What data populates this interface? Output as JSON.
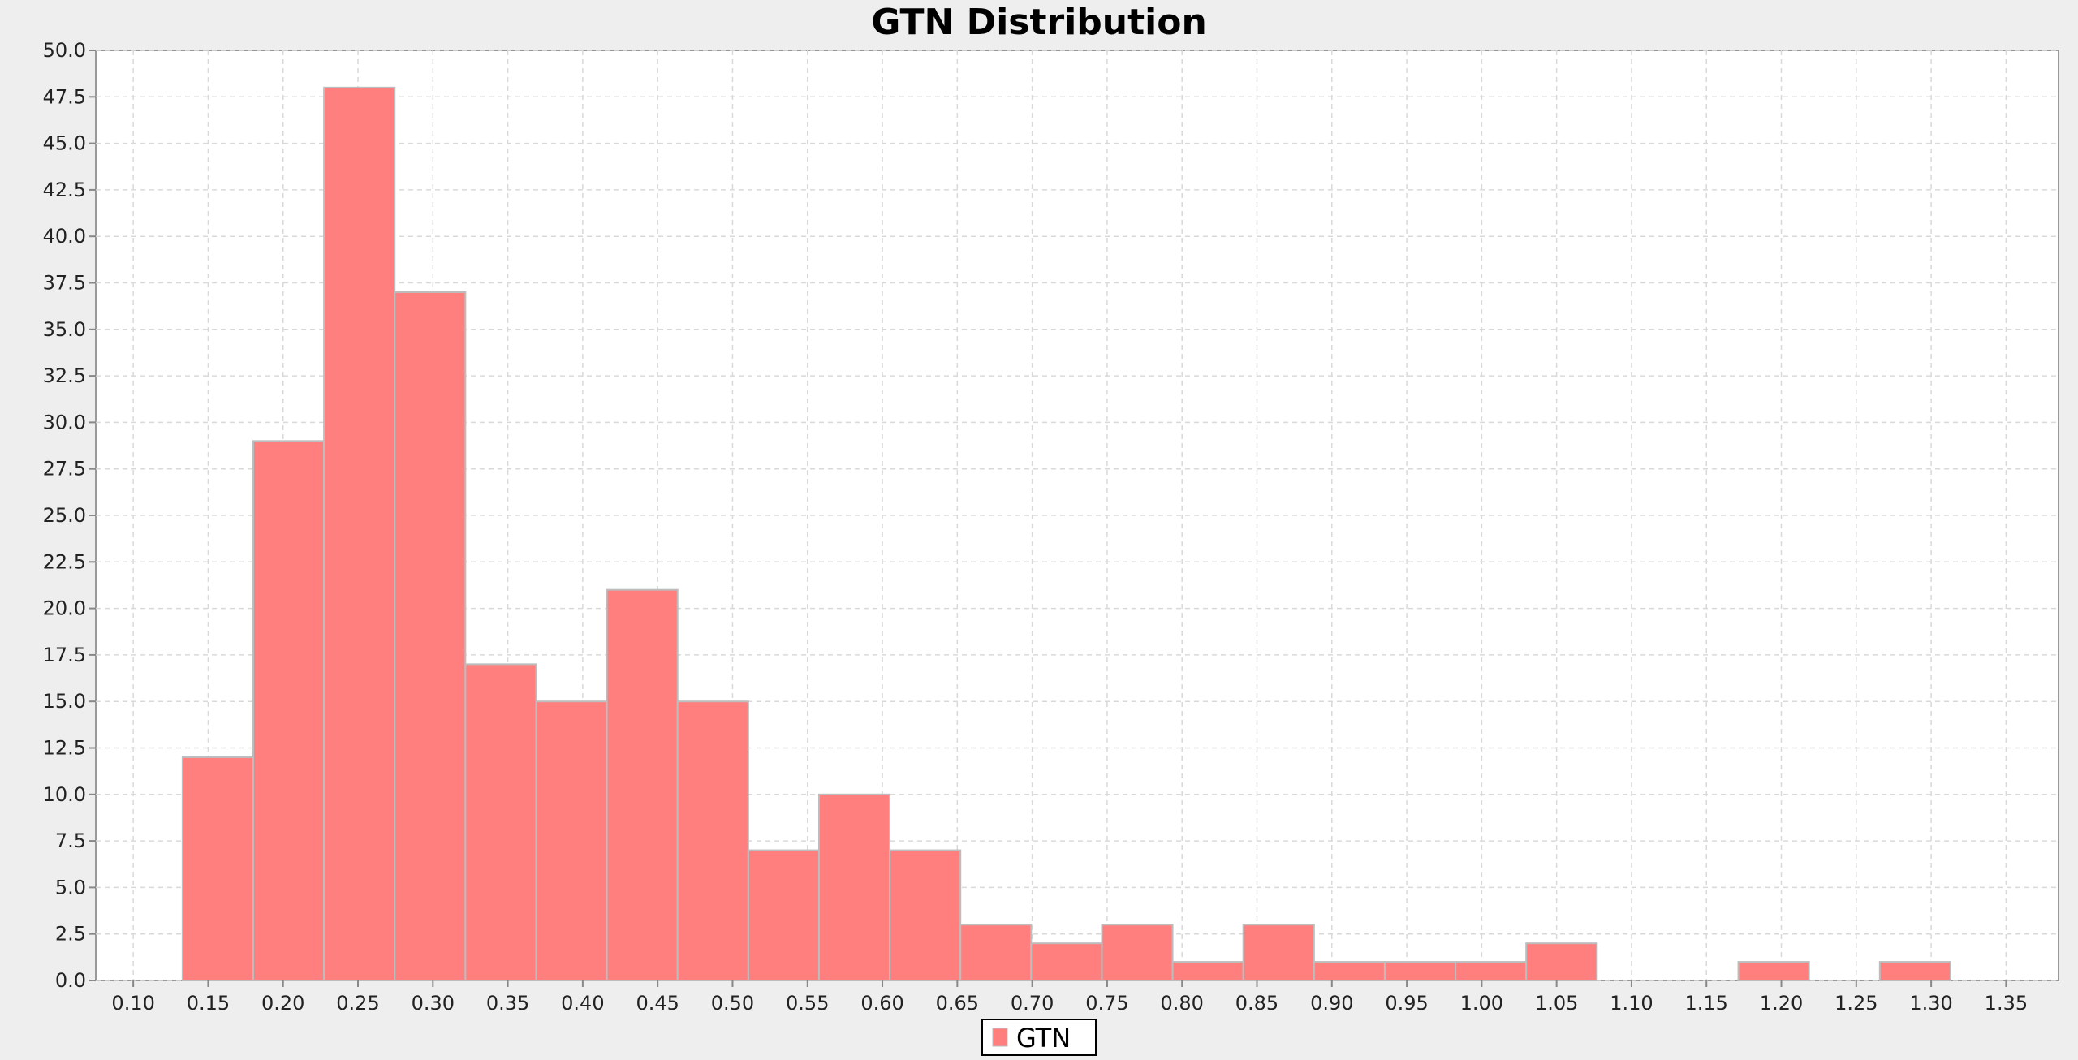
{
  "chart_data": {
    "type": "bar",
    "title": "GTN Distribution",
    "xlabel": "",
    "ylabel": "",
    "xlim": [
      0.075,
      1.385
    ],
    "ylim": [
      0,
      50
    ],
    "x_ticks": [
      "0.10",
      "0.15",
      "0.20",
      "0.25",
      "0.30",
      "0.35",
      "0.40",
      "0.45",
      "0.50",
      "0.55",
      "0.60",
      "0.65",
      "0.70",
      "0.75",
      "0.80",
      "0.85",
      "0.90",
      "0.95",
      "1.00",
      "1.05",
      "1.10",
      "1.15",
      "1.20",
      "1.25",
      "1.30",
      "1.35"
    ],
    "y_ticks": [
      "0.0",
      "2.5",
      "5.0",
      "7.5",
      "10.0",
      "12.5",
      "15.0",
      "17.5",
      "20.0",
      "22.5",
      "25.0",
      "27.5",
      "30.0",
      "32.5",
      "35.0",
      "37.5",
      "40.0",
      "42.5",
      "45.0",
      "47.5",
      "50.0"
    ],
    "bin_width": 0.0472,
    "series": [
      {
        "name": "GTN",
        "bins": [
          {
            "start": 0.1329,
            "value": 12
          },
          {
            "start": 0.1801,
            "value": 29
          },
          {
            "start": 0.2273,
            "value": 48
          },
          {
            "start": 0.2745,
            "value": 37
          },
          {
            "start": 0.3217,
            "value": 17
          },
          {
            "start": 0.3689,
            "value": 15
          },
          {
            "start": 0.4161,
            "value": 21
          },
          {
            "start": 0.4633,
            "value": 15
          },
          {
            "start": 0.5105,
            "value": 7
          },
          {
            "start": 0.5577,
            "value": 10
          },
          {
            "start": 0.6049,
            "value": 7
          },
          {
            "start": 0.6521,
            "value": 3
          },
          {
            "start": 0.6993,
            "value": 2
          },
          {
            "start": 0.7465,
            "value": 3
          },
          {
            "start": 0.7937,
            "value": 1
          },
          {
            "start": 0.8409,
            "value": 3
          },
          {
            "start": 0.8881,
            "value": 1
          },
          {
            "start": 0.9353,
            "value": 1
          },
          {
            "start": 0.9825,
            "value": 1
          },
          {
            "start": 1.0297,
            "value": 2
          },
          {
            "start": 1.1713,
            "value": 1
          },
          {
            "start": 1.2657,
            "value": 1
          }
        ]
      }
    ],
    "grid": true,
    "legend": "bottom-center",
    "colors": {
      "bar_fill": "#ff7f7f",
      "bar_stroke": "#bdbdbd",
      "plot_background": "#ffffff",
      "page_background": "#eeeeee",
      "grid": "#d9d9d9"
    }
  }
}
